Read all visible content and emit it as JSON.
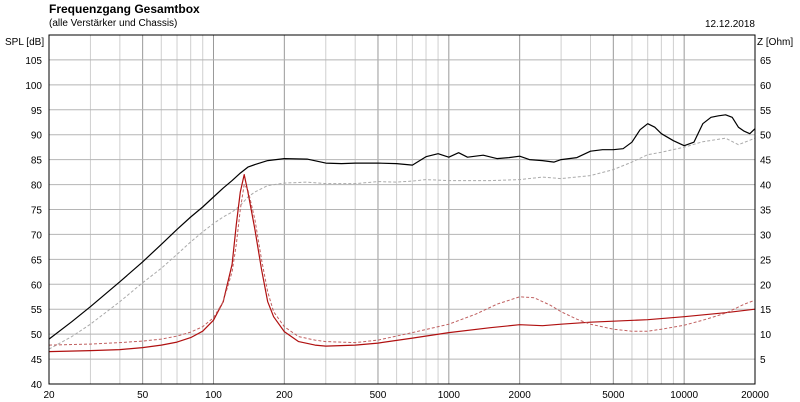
{
  "header": {
    "title": "Frequenzgang Gesamtbox",
    "subtitle": "(alle Verstärker und Chassis)",
    "date": "12.12.2018"
  },
  "chart_data": {
    "type": "line",
    "title": "Frequenzgang Gesamtbox",
    "subtitle": "(alle Verstärker und Chassis)",
    "ylabel": "SPL [dB]",
    "y2label": "Z [Ohm]",
    "xscale": "log",
    "xlim": [
      20,
      20000
    ],
    "ylim": [
      40,
      110
    ],
    "y2lim": [
      0,
      70
    ],
    "grid": true,
    "x_ticks": [
      "20",
      "50",
      "100",
      "200",
      "500",
      "1000",
      "2000",
      "5000",
      "10000",
      "20000"
    ],
    "x_tick_values": [
      20,
      50,
      100,
      200,
      500,
      1000,
      2000,
      5000,
      10000,
      20000
    ],
    "y_ticks": [
      "40",
      "45",
      "50",
      "55",
      "60",
      "65",
      "70",
      "75",
      "80",
      "85",
      "90",
      "95",
      "100",
      "105"
    ],
    "y2_ticks": [
      "5",
      "10",
      "15",
      "20",
      "25",
      "30",
      "35",
      "40",
      "45",
      "50",
      "55",
      "60",
      "65"
    ],
    "series": [
      {
        "color": "#000000",
        "dashed": false,
        "axis": "left",
        "x": [
          20,
          25,
          30,
          40,
          50,
          60,
          70,
          80,
          90,
          100,
          110,
          120,
          130,
          140,
          150,
          170,
          200,
          250,
          300,
          350,
          400,
          500,
          600,
          700,
          800,
          900,
          1000,
          1100,
          1200,
          1400,
          1600,
          1800,
          2000,
          2200,
          2500,
          2800,
          3000,
          3500,
          4000,
          4500,
          5000,
          5500,
          6000,
          6500,
          7000,
          7500,
          8000,
          9000,
          10000,
          11000,
          12000,
          13000,
          14000,
          15000,
          16000,
          17000,
          18000,
          19000,
          20000
        ],
        "y": [
          49,
          52.5,
          55.5,
          60.5,
          64.5,
          68,
          71,
          73.5,
          75.5,
          77.5,
          79.3,
          80.8,
          82.3,
          83.5,
          84,
          84.8,
          85.2,
          85.1,
          84.3,
          84.2,
          84.3,
          84.3,
          84.2,
          83.9,
          85.6,
          86.2,
          85.5,
          86.4,
          85.5,
          85.9,
          85.2,
          85.4,
          85.7,
          85,
          84.8,
          84.5,
          85,
          85.4,
          86.7,
          87,
          87,
          87.2,
          88.5,
          91,
          92.2,
          91.5,
          90.2,
          88.8,
          87.8,
          88.5,
          92.2,
          93.5,
          93.8,
          94,
          93.5,
          91.5,
          90.7,
          90.2,
          91.2
        ]
      },
      {
        "color": "#aaaaaa",
        "dashed": true,
        "axis": "left",
        "x": [
          20,
          25,
          30,
          40,
          50,
          60,
          70,
          80,
          90,
          100,
          110,
          120,
          130,
          140,
          150,
          170,
          200,
          250,
          300,
          400,
          500,
          600,
          700,
          800,
          1000,
          1200,
          1500,
          2000,
          2500,
          3000,
          4000,
          5000,
          6000,
          7000,
          8000,
          10000,
          12000,
          15000,
          17000,
          20000
        ],
        "y": [
          47,
          49.5,
          52,
          56.5,
          60.3,
          63.2,
          66,
          68.5,
          70.5,
          72.2,
          73.5,
          74.5,
          75.8,
          77.5,
          78.5,
          79.8,
          80.3,
          80.5,
          80.2,
          80.2,
          80.6,
          80.5,
          80.7,
          81,
          80.8,
          80.8,
          80.8,
          81,
          81.5,
          81.2,
          81.8,
          83,
          84.5,
          86,
          86.5,
          87.5,
          88.6,
          89.3,
          88,
          89.3
        ]
      },
      {
        "color": "#b01010",
        "dashed": false,
        "axis": "right",
        "x": [
          20,
          30,
          40,
          50,
          60,
          70,
          80,
          90,
          100,
          110,
          120,
          125,
          130,
          135,
          140,
          150,
          160,
          170,
          180,
          200,
          230,
          270,
          300,
          400,
          500,
          700,
          1000,
          1500,
          2000,
          2500,
          3000,
          4000,
          5000,
          7000,
          10000,
          15000,
          20000
        ],
        "y": [
          6.5,
          6.7,
          6.9,
          7.3,
          7.8,
          8.4,
          9.3,
          10.6,
          12.8,
          16.5,
          24,
          32,
          38.5,
          42,
          38.5,
          31,
          23,
          16.5,
          13.5,
          10.5,
          8.5,
          7.8,
          7.6,
          7.8,
          8.2,
          9.2,
          10.3,
          11.3,
          11.9,
          11.7,
          12,
          12.4,
          12.6,
          12.9,
          13.5,
          14.3,
          15
        ]
      },
      {
        "color": "#c06060",
        "dashed": true,
        "axis": "right",
        "x": [
          20,
          30,
          40,
          50,
          60,
          70,
          80,
          90,
          100,
          110,
          120,
          125,
          130,
          135,
          140,
          150,
          160,
          170,
          180,
          200,
          230,
          270,
          300,
          400,
          500,
          700,
          1000,
          1300,
          1600,
          2000,
          2300,
          2700,
          3000,
          3500,
          4000,
          5000,
          6000,
          7000,
          8000,
          10000,
          12000,
          15000,
          18000,
          20000
        ],
        "y": [
          7.8,
          8,
          8.3,
          8.6,
          9,
          9.6,
          10.4,
          11.5,
          13.3,
          16.5,
          22.5,
          28,
          35,
          40,
          39,
          33,
          25,
          18.5,
          14.5,
          11.5,
          9.5,
          8.8,
          8.5,
          8.3,
          8.8,
          10.3,
          12,
          14,
          16,
          17.5,
          17.3,
          15.8,
          14.5,
          13,
          12,
          11,
          10.6,
          10.6,
          11,
          11.8,
          12.8,
          14.2,
          16,
          16.8
        ]
      }
    ]
  }
}
